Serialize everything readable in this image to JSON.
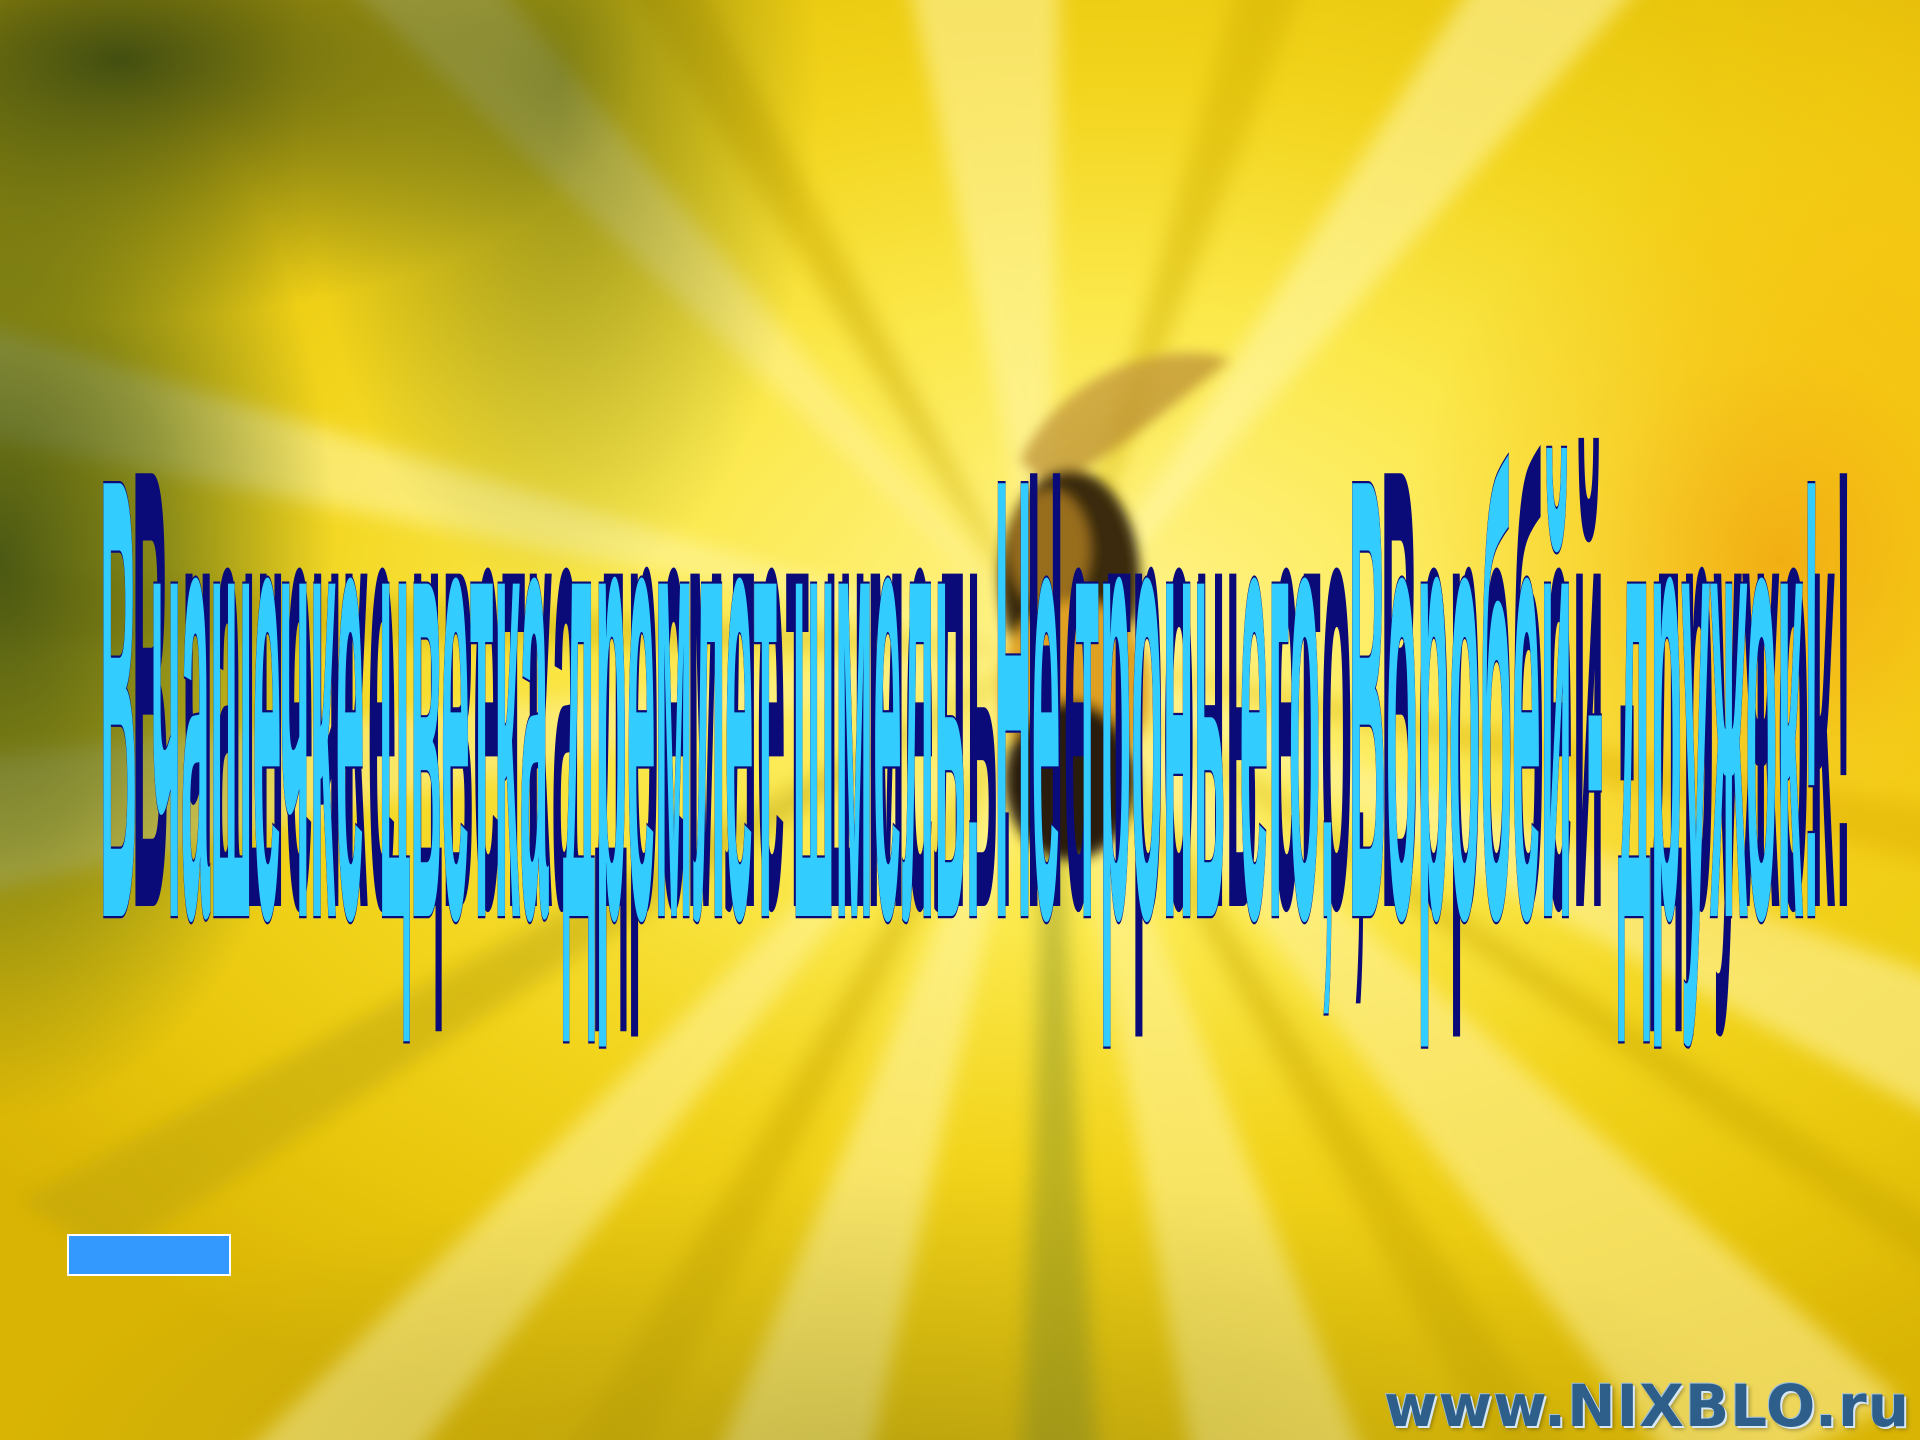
{
  "slide": {
    "title_text": "В чашечке цветка дремлет шмель. Не тронь его, Воробей - дружок!",
    "watermark_text": "www.NIXBLO.ru"
  },
  "colors": {
    "title_fill": "#33ccff",
    "title_shadow": "#0a0a78",
    "button_fill": "#3399ff",
    "background_yellow": "#f4d20a"
  },
  "icons": {
    "background": "yellow-flower-photo",
    "bee": "bumblebee-image"
  }
}
